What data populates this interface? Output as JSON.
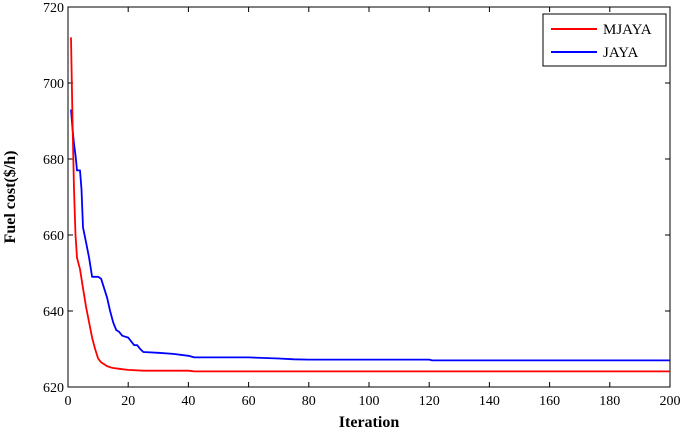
{
  "chart_data": {
    "type": "line",
    "title": "",
    "xlabel": "Iteration",
    "ylabel": "Fuel cost($/h)",
    "xlim": [
      0,
      200
    ],
    "ylim": [
      620,
      720
    ],
    "xticks": [
      0,
      20,
      40,
      60,
      80,
      100,
      120,
      140,
      160,
      180,
      200
    ],
    "yticks": [
      620,
      640,
      660,
      680,
      700,
      720
    ],
    "grid": false,
    "legend_position": "top-right",
    "series": [
      {
        "name": "MJAYA",
        "color": "#ff0000",
        "x": [
          1,
          1.5,
          2,
          2.5,
          3,
          4,
          5,
          6,
          7,
          8,
          9,
          10,
          11,
          12,
          13,
          14,
          15,
          17,
          20,
          25,
          30,
          35,
          40,
          42,
          50,
          60,
          80,
          100,
          120,
          150,
          200
        ],
        "y": [
          712,
          690,
          672,
          660,
          654,
          651,
          646,
          641,
          637,
          633,
          630,
          627.5,
          626.5,
          626,
          625.5,
          625.2,
          625,
          624.8,
          624.5,
          624.3,
          624.3,
          624.3,
          624.3,
          624.1,
          624.1,
          624.1,
          624.1,
          624.1,
          624.1,
          624.1,
          624.1
        ]
      },
      {
        "name": "JAYA",
        "color": "#0000ff",
        "x": [
          1,
          1.5,
          2,
          2.5,
          3,
          4,
          4.5,
          5,
          6,
          7,
          8,
          9,
          10,
          11,
          12,
          13,
          14,
          15,
          16,
          17,
          18,
          20,
          21,
          22,
          23,
          24,
          25,
          30,
          35,
          40,
          42,
          50,
          60,
          70,
          75,
          80,
          100,
          120,
          121,
          150,
          200
        ],
        "y": [
          693,
          688,
          684,
          681,
          677,
          677,
          672,
          662,
          658,
          654,
          649,
          649,
          649,
          648.5,
          646,
          643.5,
          640,
          637,
          635,
          634.5,
          633.5,
          633,
          632,
          631,
          631,
          630,
          629.2,
          629,
          628.7,
          628.2,
          627.8,
          627.8,
          627.8,
          627.5,
          627.3,
          627.2,
          627.2,
          627.2,
          627,
          627,
          627
        ]
      }
    ]
  }
}
